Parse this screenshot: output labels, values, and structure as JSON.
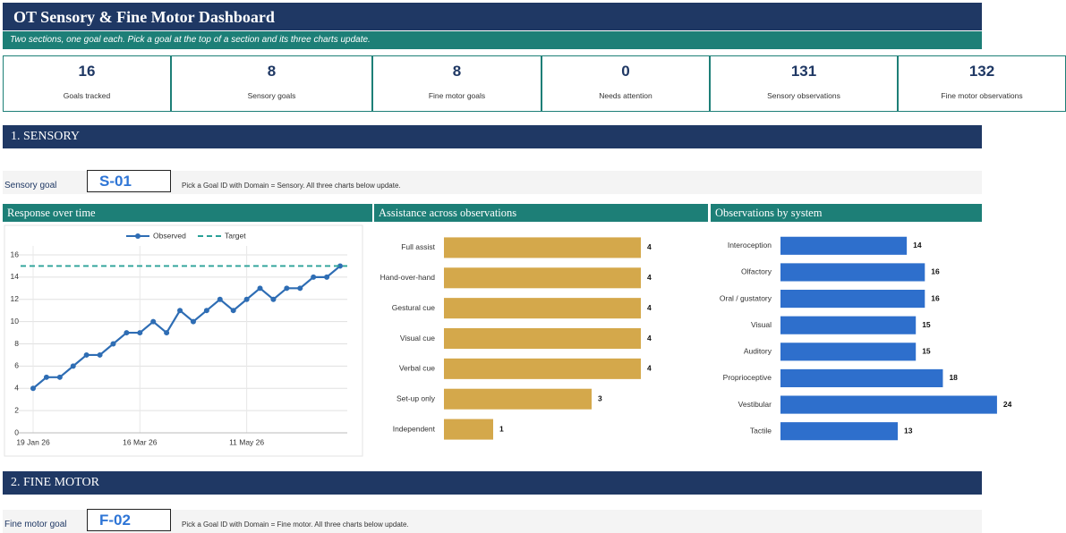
{
  "header": {
    "title": "OT Sensory & Fine Motor Dashboard",
    "subtitle": "Two sections, one goal each. Pick a goal at the top of a section and its three charts update."
  },
  "kpis": [
    {
      "value": 16,
      "label": "Goals tracked"
    },
    {
      "value": 8,
      "label": "Sensory goals"
    },
    {
      "value": 8,
      "label": "Fine motor goals"
    },
    {
      "value": 0,
      "label": "Needs attention"
    },
    {
      "value": 131,
      "label": "Sensory observations"
    },
    {
      "value": 132,
      "label": "Fine motor observations"
    }
  ],
  "sections": [
    {
      "heading": "1.  SENSORY",
      "goal_label": "Sensory goal",
      "goal_id": "S-01",
      "hint": "Pick a Goal ID with Domain = Sensory. All three charts below update.",
      "charts": [
        {
          "type": "line",
          "title": "Response over time",
          "x": [
            "2026-01-19",
            "2026-01-26",
            "2026-02-02",
            "2026-02-09",
            "2026-02-16",
            "2026-02-23",
            "2026-03-02",
            "2026-03-09",
            "2026-03-16",
            "2026-03-23",
            "2026-03-30",
            "2026-04-06",
            "2026-04-13",
            "2026-04-20",
            "2026-04-27",
            "2026-05-04",
            "2026-05-11",
            "2026-05-18",
            "2026-05-25",
            "2026-06-01",
            "2026-06-08",
            "2026-06-15",
            "2026-06-22",
            "2026-06-29"
          ],
          "series": [
            {
              "name": "Observed",
              "color": "#2e6db4",
              "values": [
                4,
                5,
                5,
                6,
                7,
                7,
                8,
                9,
                9,
                10,
                9,
                11,
                10,
                11,
                12,
                11,
                12,
                13,
                12,
                13,
                13,
                14,
                14,
                15
              ]
            }
          ],
          "reference_lines": [
            {
              "name": "Target",
              "value": 15,
              "color": "#2aa198"
            }
          ],
          "xlim": [
            "2026-01-19",
            "2026-06-29"
          ],
          "xticks": [
            {
              "value": "2026-01-19",
              "label": "19 Jan 26"
            },
            {
              "value": "2026-03-16",
              "label": "16 Mar 26"
            },
            {
              "value": "2026-05-11",
              "label": "11 May 26"
            }
          ],
          "ylim": [
            0,
            16
          ],
          "yticks": [
            0,
            2,
            4,
            6,
            8,
            10,
            12,
            14,
            16
          ],
          "grid": true
        },
        {
          "type": "hbar",
          "title": "Assistance across observations",
          "categories": [
            "Full assist",
            "Hand-over-hand",
            "Gestural cue",
            "Visual cue",
            "Verbal cue",
            "Set-up only",
            "Independent"
          ],
          "values": [
            4,
            4,
            4,
            4,
            4,
            3,
            1
          ],
          "color": "#d4a84b",
          "xlim": [
            0,
            5
          ]
        },
        {
          "type": "hbar",
          "title": "Observations by system",
          "categories": [
            "Interoception",
            "Olfactory",
            "Oral / gustatory",
            "Visual",
            "Auditory",
            "Proprioceptive",
            "Vestibular",
            "Tactile"
          ],
          "values": [
            14,
            16,
            16,
            15,
            15,
            18,
            24,
            13
          ],
          "color": "#2e6fcc",
          "xlim": [
            0,
            25
          ]
        }
      ]
    },
    {
      "heading": "2.  FINE MOTOR",
      "goal_label": "Fine motor goal",
      "goal_id": "F-02",
      "hint": "Pick a Goal ID with Domain = Fine motor. All three charts below update."
    }
  ]
}
